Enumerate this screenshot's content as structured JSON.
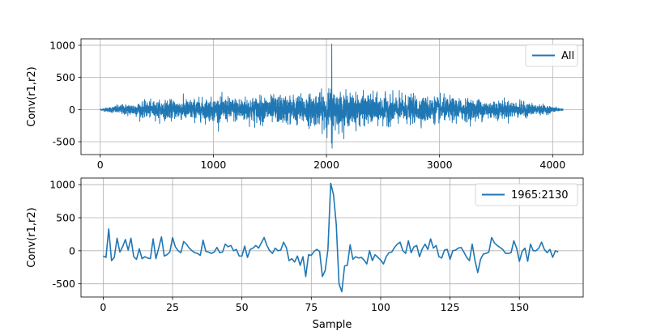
{
  "chart_data": [
    {
      "type": "line",
      "title": "",
      "xlabel": "",
      "ylabel": "Conv(r1,r2)",
      "xlim": [
        -170,
        4270
      ],
      "ylim": [
        -700,
        1100
      ],
      "xticks": [
        0,
        1000,
        2000,
        3000,
        4000
      ],
      "yticks": [
        -500,
        0,
        500,
        1000
      ],
      "grid": true,
      "legend": "upper right",
      "color": "#1f77b4",
      "series": [
        {
          "name": "All",
          "n_samples": 4095,
          "peak": {
            "x": 2047,
            "y": 1020
          },
          "min": {
            "x": 2050,
            "y": -600
          },
          "envelope_x": [
            0,
            200,
            400,
            600,
            800,
            1000,
            1200,
            1400,
            1600,
            1800,
            1950,
            2047,
            2150,
            2300,
            2500,
            2700,
            2900,
            3100,
            3300,
            3500,
            3700,
            3900,
            4094
          ],
          "envelope_amp": [
            10,
            70,
            105,
            125,
            140,
            150,
            160,
            175,
            185,
            200,
            220,
            280,
            220,
            200,
            190,
            180,
            170,
            155,
            140,
            125,
            105,
            65,
            10
          ]
        }
      ]
    },
    {
      "type": "line",
      "title": "",
      "xlabel": "Sample",
      "ylabel": "Conv(r1,r2)",
      "xlim": [
        -8,
        173
      ],
      "ylim": [
        -700,
        1100
      ],
      "xticks": [
        0,
        25,
        50,
        75,
        100,
        125,
        150
      ],
      "yticks": [
        -500,
        0,
        500,
        1000
      ],
      "grid": true,
      "legend": "upper right",
      "color": "#1f77b4",
      "series": [
        {
          "name": "1965:2130",
          "y": [
            -80,
            -100,
            330,
            -150,
            -100,
            190,
            -20,
            60,
            170,
            10,
            190,
            -90,
            -130,
            30,
            -120,
            -90,
            -110,
            -120,
            180,
            -120,
            40,
            210,
            -80,
            -60,
            -20,
            200,
            60,
            0,
            -30,
            140,
            100,
            40,
            0,
            -30,
            -40,
            -70,
            160,
            -10,
            -20,
            -40,
            -20,
            50,
            -30,
            -20,
            100,
            60,
            80,
            0,
            20,
            -80,
            -80,
            70,
            -100,
            20,
            40,
            80,
            40,
            120,
            200,
            80,
            0,
            -40,
            40,
            0,
            10,
            130,
            50,
            -150,
            -120,
            -170,
            -80,
            -220,
            -90,
            -390,
            -60,
            -70,
            -10,
            20,
            -10,
            -390,
            -300,
            20,
            1020,
            850,
            400,
            -500,
            -620,
            -230,
            -220,
            90,
            -130,
            -90,
            -110,
            -100,
            -140,
            -200,
            0,
            -150,
            -60,
            -100,
            -140,
            -200,
            -90,
            -30,
            -20,
            50,
            100,
            130,
            0,
            -40,
            150,
            -30,
            60,
            80,
            -90,
            30,
            100,
            20,
            180,
            40,
            80,
            -90,
            -110,
            10,
            20,
            -130,
            0,
            10,
            40,
            50,
            -20,
            -100,
            -150,
            100,
            -150,
            -330,
            -130,
            -50,
            -40,
            -20,
            200,
            120,
            80,
            50,
            20,
            -40,
            -40,
            -30,
            150,
            40,
            -160,
            -10,
            40,
            -160,
            100,
            0,
            0,
            40,
            130,
            20,
            -30,
            20,
            -100,
            0,
            -20
          ]
        }
      ]
    }
  ]
}
